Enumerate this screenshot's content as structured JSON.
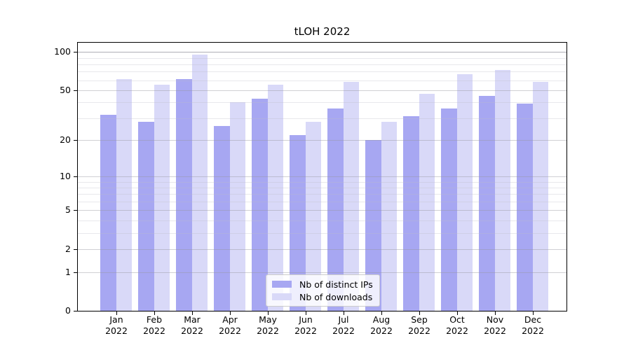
{
  "title": "tLOH 2022",
  "chart_data": {
    "type": "bar",
    "title": "tLOH 2022",
    "categories": [
      "Jan 2022",
      "Feb 2022",
      "Mar 2022",
      "Apr 2022",
      "May 2022",
      "Jun 2022",
      "Jul 2022",
      "Aug 2022",
      "Sep 2022",
      "Oct 2022",
      "Nov 2022",
      "Dec 2022"
    ],
    "month_names": [
      "Jan",
      "Feb",
      "Mar",
      "Apr",
      "May",
      "Jun",
      "Jul",
      "Aug",
      "Sep",
      "Oct",
      "Nov",
      "Dec"
    ],
    "year_label": "2022",
    "series": [
      {
        "name": "Nb of distinct IPs",
        "color": "#a7a7f2",
        "values": [
          32,
          28,
          61,
          26,
          43,
          22,
          36,
          20,
          31,
          36,
          45,
          39
        ]
      },
      {
        "name": "Nb of downloads",
        "color": "#d9d9f8",
        "values": [
          61,
          55,
          95,
          40,
          55,
          28,
          58,
          28,
          47,
          67,
          72,
          58
        ]
      }
    ],
    "xlabel": "",
    "ylabel": "",
    "yscale": "log1p",
    "ylim": [
      0,
      118
    ],
    "ytick_values": [
      100,
      50,
      20,
      10,
      5,
      2,
      1,
      0
    ],
    "ytick_labels": [
      "100",
      "50",
      "20",
      "10",
      "5",
      "2",
      "1",
      "0"
    ],
    "major_gridlines": [
      1,
      2,
      5,
      10,
      20,
      50,
      100
    ],
    "minor_gridlines": [
      3,
      4,
      6,
      7,
      8,
      9,
      30,
      40,
      60,
      70,
      80,
      90
    ],
    "grid": true,
    "legend_position": "inside-bottom-center"
  },
  "colors": {
    "background": "#ffffff",
    "axis": "#000000",
    "bar_distinct_ips": "#a7a7f2",
    "bar_downloads": "#d9d9f8",
    "major_grid": "#d7d7da",
    "minor_grid": "#ededf0",
    "grid_100": "#b4b4ba"
  }
}
